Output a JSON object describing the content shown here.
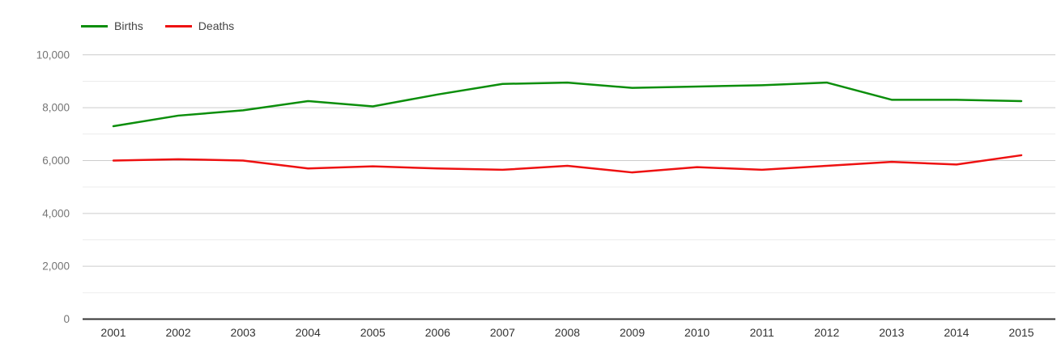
{
  "chart_data": {
    "type": "line",
    "title": "",
    "xlabel": "",
    "ylabel": "",
    "categories": [
      "2001",
      "2002",
      "2003",
      "2004",
      "2005",
      "2006",
      "2007",
      "2008",
      "2009",
      "2010",
      "2011",
      "2012",
      "2013",
      "2014",
      "2015"
    ],
    "series": [
      {
        "name": "Births",
        "color": "#0b8e0b",
        "values": [
          7300,
          7700,
          7900,
          8250,
          8050,
          8500,
          8900,
          8950,
          8750,
          8800,
          8850,
          8950,
          8300,
          8300,
          8250
        ]
      },
      {
        "name": "Deaths",
        "color": "#ee1111",
        "values": [
          6000,
          6050,
          6000,
          5700,
          5780,
          5700,
          5650,
          5800,
          5550,
          5750,
          5650,
          5800,
          5950,
          5850,
          6200
        ]
      }
    ],
    "ylim": [
      0,
      10000
    ],
    "y_major_ticks": {
      "values": [
        0,
        2000,
        4000,
        6000,
        8000,
        10000
      ],
      "labels": [
        "0",
        "2,000",
        "4,000",
        "6,000",
        "8,000",
        "10,000"
      ]
    },
    "y_minor_gridlines": [
      1000,
      3000,
      5000,
      7000,
      9000
    ],
    "grid": "horizontal major and minor gridlines",
    "legend_position": "top-left"
  },
  "colors": {
    "background": "#ffffff",
    "major_grid": "#cccccc",
    "minor_grid": "#ececec",
    "axis_line": "#333333",
    "y_tick_label": "#757575",
    "x_tick_label": "#333333",
    "births_line": "#0b8e0b",
    "deaths_line": "#ee1111"
  }
}
